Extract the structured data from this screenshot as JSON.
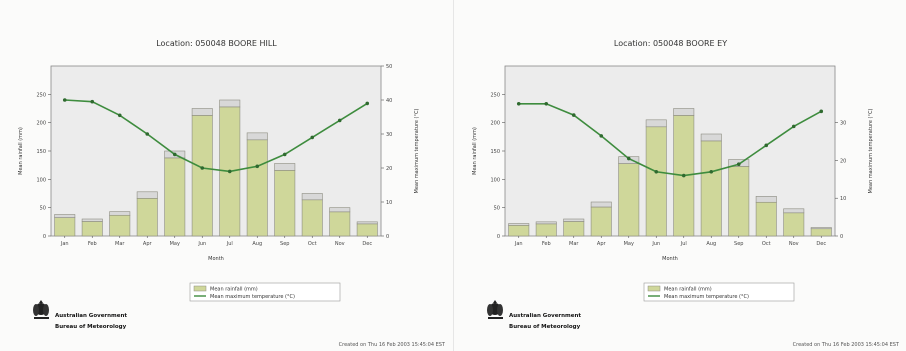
{
  "chart_data": [
    {
      "type": "bar",
      "title": "Location: 050048 BOORE HILL",
      "xlabel": "Month",
      "ylabel": "Mean rainfall (mm)",
      "y2label": "Mean maximum temperature (°C)",
      "categories": [
        "Jan",
        "Feb",
        "Mar",
        "Apr",
        "May",
        "Jun",
        "Jul",
        "Aug",
        "Sep",
        "Oct",
        "Nov",
        "Dec"
      ],
      "ylim": [
        0,
        300
      ],
      "yticks": [
        "0",
        "50",
        "100",
        "150",
        "200",
        "250"
      ],
      "y2lim": [
        0,
        50
      ],
      "y2ticks": [
        "0",
        "10",
        "20",
        "30",
        "40",
        "50"
      ],
      "series": [
        {
          "name": "Mean rainfall (mm)",
          "type": "bar",
          "axis": "left",
          "values": [
            38,
            30,
            43,
            78,
            150,
            225,
            240,
            182,
            128,
            75,
            50,
            25
          ]
        },
        {
          "name": "Mean maximum temperature (°C)",
          "type": "line",
          "axis": "right",
          "values": [
            40,
            39.5,
            35.5,
            30,
            24,
            20,
            19,
            20.5,
            24,
            29,
            34,
            39
          ]
        }
      ],
      "grid": false,
      "legend": "bottom-center",
      "colors": {
        "bar_fill": "#cfd79a",
        "bar_cap": "#d8d8d8",
        "bar_stroke": "#8c8c80",
        "line": "#3e8c3e",
        "plot_bg": "#ececec"
      }
    },
    {
      "type": "bar",
      "title": "Location: 050048 BOORE EY",
      "xlabel": "Month",
      "ylabel": "Mean rainfall (mm)",
      "y2label": "Mean maximum temperature (°C)",
      "categories": [
        "Jan",
        "Feb",
        "Mar",
        "Apr",
        "May",
        "Jun",
        "Jul",
        "Aug",
        "Sep",
        "Oct",
        "Nov",
        "Dec"
      ],
      "ylim": [
        0,
        300
      ],
      "yticks": [
        "0",
        "50",
        "100",
        "150",
        "200",
        "250"
      ],
      "y2lim": [
        0,
        45
      ],
      "y2ticks": [
        "0",
        "10",
        "20",
        "30"
      ],
      "series": [
        {
          "name": "Mean rainfall (mm)",
          "type": "bar",
          "axis": "left",
          "values": [
            22,
            25,
            30,
            60,
            140,
            205,
            225,
            180,
            135,
            70,
            48,
            15
          ]
        },
        {
          "name": "Mean maximum temperature (°C)",
          "type": "line",
          "axis": "right",
          "values": [
            35,
            35,
            32,
            26.5,
            20.5,
            17,
            16,
            17,
            19,
            24,
            29,
            33
          ]
        }
      ],
      "grid": false,
      "legend": "bottom-center",
      "colors": {
        "bar_fill": "#cfd79a",
        "bar_cap": "#d8d8d8",
        "bar_stroke": "#8c8c80",
        "line": "#3e8c3e",
        "plot_bg": "#ececec"
      }
    }
  ],
  "branding": {
    "logo_line1": "Australian Government",
    "logo_line2": "Bureau of Meteorology"
  },
  "footers": [
    "Created on Thu 16 Feb 2003 15:45:04 EST",
    "Created on Thu 16 Feb 2003 15:45:04 EST"
  ]
}
